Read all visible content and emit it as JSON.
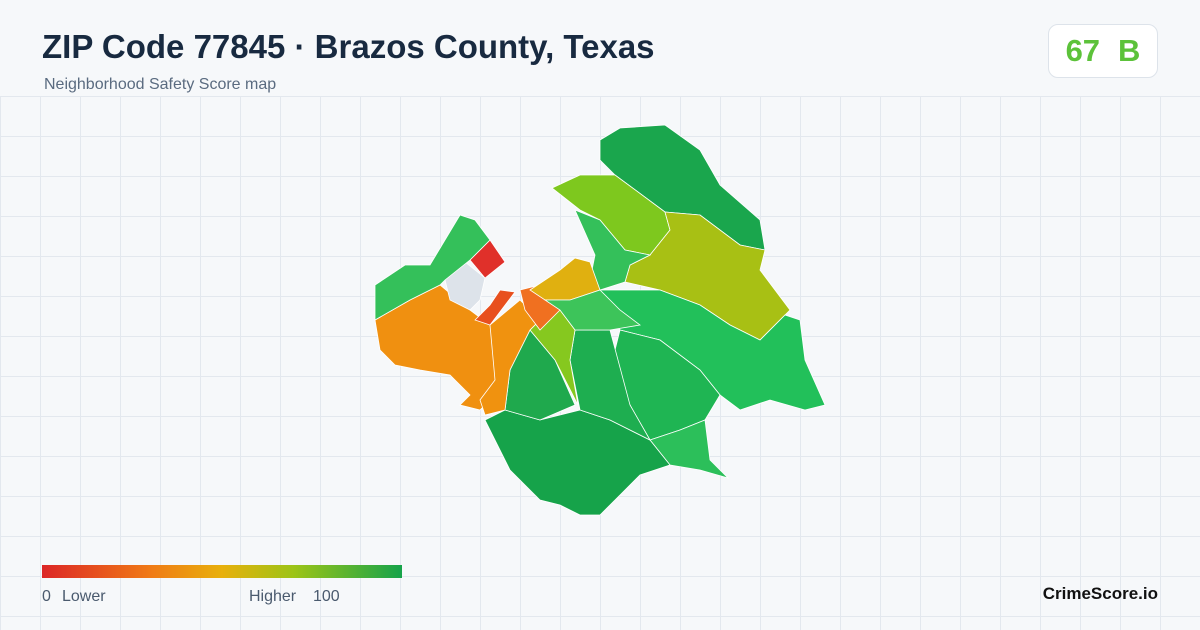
{
  "header": {
    "title": "ZIP Code 77845 · Brazos County, Texas",
    "subtitle": "Neighborhood Safety Score map"
  },
  "score": {
    "value": 67,
    "grade": "B"
  },
  "legend": {
    "min": 0,
    "min_label": "Lower",
    "max_label": "Higher",
    "max": 100
  },
  "brand": "CrimeScore.io"
}
